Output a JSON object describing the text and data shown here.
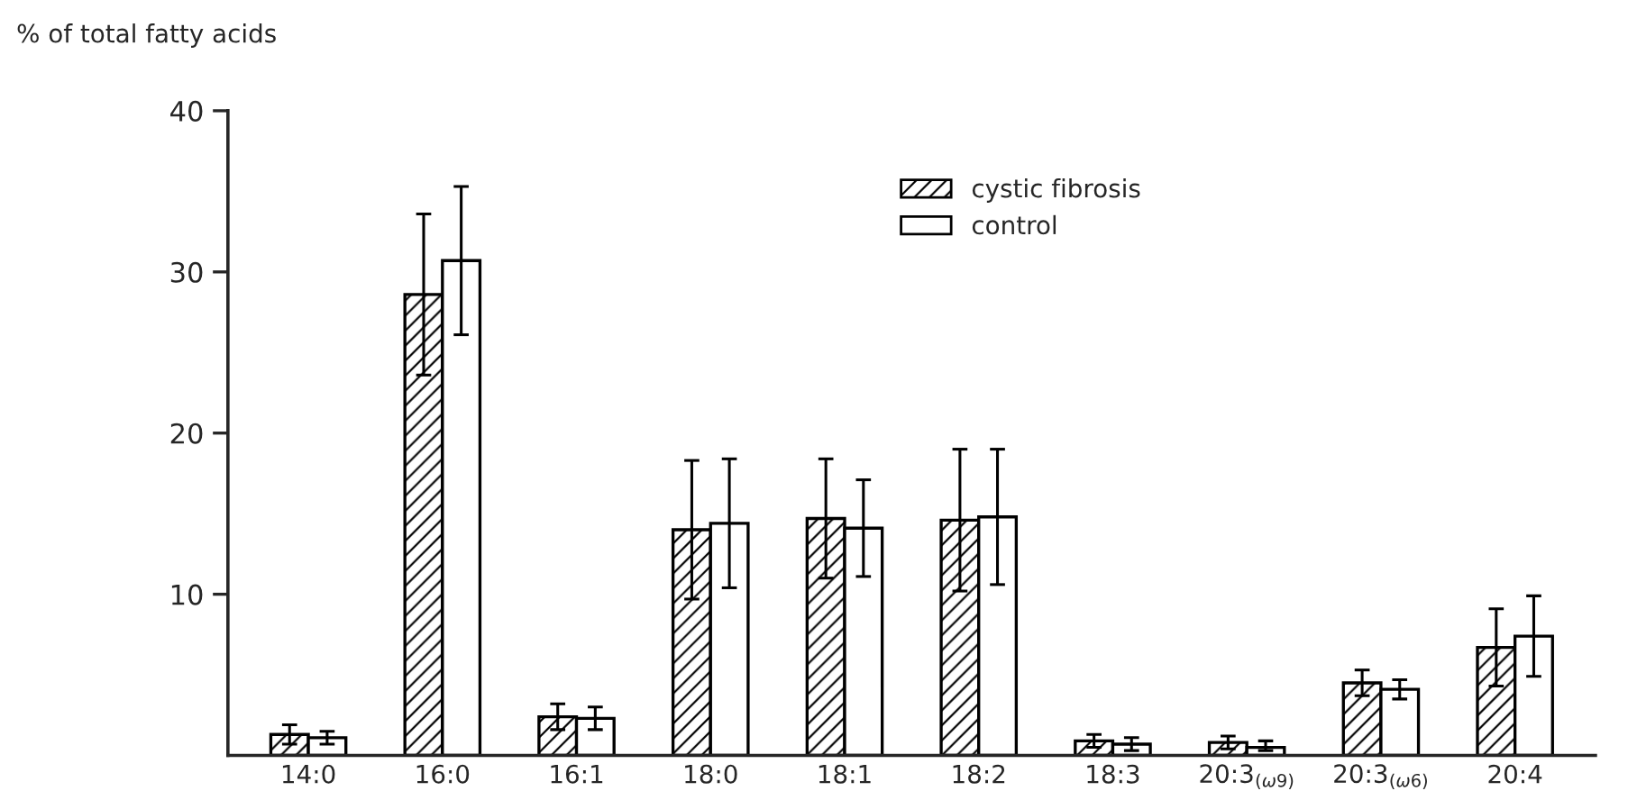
{
  "chart_data": {
    "type": "bar",
    "ylabel": "% of total fatty acids",
    "categories": [
      "14:0",
      "16:0",
      "16:1",
      "18:0",
      "18:1",
      "18:2",
      "18:3",
      "20:3$_{(ω9)}$",
      "20:3$_{(ω6)}$",
      "20:4"
    ],
    "series": [
      {
        "name": "cystic fibrosis",
        "color": "#000000",
        "values": [
          1.3,
          28.6,
          2.4,
          14.0,
          14.7,
          14.6,
          0.9,
          0.8,
          4.5,
          6.7
        ],
        "errors": [
          0.6,
          5.0,
          0.8,
          4.3,
          3.7,
          4.4,
          0.4,
          0.4,
          0.8,
          2.4
        ]
      },
      {
        "name": "control",
        "color": "#ffffff",
        "values": [
          1.1,
          30.7,
          2.3,
          14.4,
          14.1,
          14.8,
          0.7,
          0.5,
          4.1,
          7.4
        ],
        "errors": [
          0.4,
          4.6,
          0.7,
          4.0,
          3.0,
          4.2,
          0.4,
          [
            0.3,
            0.9
          ],
          0.6,
          2.5
        ]
      }
    ],
    "ylim": [
      0,
      40
    ],
    "yticks": [
      10,
      20,
      30,
      40
    ],
    "legend": "top",
    "grid": false
  }
}
